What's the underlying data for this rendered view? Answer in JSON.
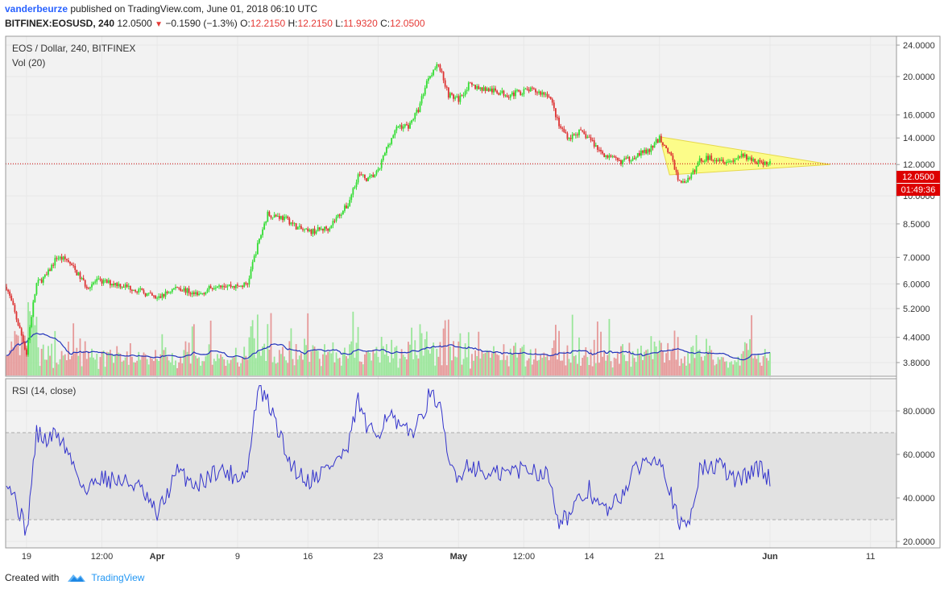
{
  "header": {
    "author": "vanderbeurze",
    "published_text": "published on TradingView.com, June 01, 2018 06:10 UTC",
    "symbol": "BITFINEX:EOSUSD, 240",
    "price": "12.0500",
    "change": "−0.1590 (−1.3%)",
    "o_label": "O:",
    "o_value": "12.2150",
    "h_label": "H:",
    "h_value": "12.2150",
    "l_label": "L:",
    "l_value": "11.9320",
    "c_label": "C:",
    "c_value": "12.0500"
  },
  "footer": {
    "created_with": "Created with",
    "brand": "TradingView"
  },
  "colors": {
    "up": "#33dd33",
    "down": "#dd3333",
    "vol_up": "#99e699",
    "vol_down": "#e69999",
    "vol_ma": "#2233bb",
    "rsi_line": "#3333cc",
    "triangle_fill": "#ffff66",
    "price_line": "#cc0000",
    "grid": "#e8e8e8",
    "background": "#f2f2f2"
  },
  "chart_data": {
    "type": "candlestick",
    "title": "EOS / Dollar, 240, BITFINEX",
    "volume_label": "Vol (20)",
    "rsi_label": "RSI (14, close)",
    "y_scale": "log",
    "ylim": [
      3.4,
      25.5
    ],
    "price_ticks": [
      "24.0000",
      "20.0000",
      "16.0000",
      "14.0000",
      "12.0000",
      "10.0000",
      "8.5000",
      "7.0000",
      "6.0000",
      "5.2000",
      "4.4000",
      "3.8000"
    ],
    "last_price_label": "12.0500",
    "countdown_label": "01:49:36",
    "x_ticks": [
      "19",
      "12:00",
      "Apr",
      "9",
      "16",
      "23",
      "May",
      "12:00",
      "14",
      "21",
      "Jun",
      "11"
    ],
    "rsi_ticks": [
      "80.0000",
      "60.0000",
      "40.0000",
      "20.0000"
    ],
    "rsi_levels": [
      70,
      30
    ],
    "close_anchors": [
      [
        "Mar 17",
        5.9
      ],
      [
        "Mar 18",
        4.9
      ],
      [
        "Mar 19",
        4.0
      ],
      [
        "Mar 20",
        6.0
      ],
      [
        "Mar 21",
        6.3
      ],
      [
        "Mar 22",
        7.0
      ],
      [
        "Mar 23",
        6.9
      ],
      [
        "Mar 24",
        6.4
      ],
      [
        "Mar 25",
        5.9
      ],
      [
        "Mar 26",
        6.1
      ],
      [
        "Mar 28",
        6.0
      ],
      [
        "Mar 30",
        5.8
      ],
      [
        "Apr 1",
        5.5
      ],
      [
        "Apr 3",
        5.9
      ],
      [
        "Apr 5",
        5.6
      ],
      [
        "Apr 7",
        6.0
      ],
      [
        "Apr 9",
        5.9
      ],
      [
        "Apr 10",
        6.0
      ],
      [
        "Apr 11",
        7.5
      ],
      [
        "Apr 12",
        9.0
      ],
      [
        "Apr 13",
        8.9
      ],
      [
        "Apr 14",
        8.7
      ],
      [
        "Apr 15",
        8.3
      ],
      [
        "Apr 16",
        8.1
      ],
      [
        "Apr 18",
        8.3
      ],
      [
        "Apr 20",
        9.5
      ],
      [
        "Apr 21",
        11.3
      ],
      [
        "Apr 22",
        11.0
      ],
      [
        "Apr 23",
        11.5
      ],
      [
        "Apr 24",
        13.5
      ],
      [
        "Apr 25",
        15.0
      ],
      [
        "Apr 26",
        15.0
      ],
      [
        "Apr 27",
        16.5
      ],
      [
        "Apr 28",
        20.0
      ],
      [
        "Apr 29",
        21.5
      ],
      [
        "Apr 30",
        18.0
      ],
      [
        "May 1",
        17.5
      ],
      [
        "May 2",
        19.0
      ],
      [
        "May 4",
        18.5
      ],
      [
        "May 6",
        18.0
      ],
      [
        "May 8",
        18.5
      ],
      [
        "May 10",
        18.0
      ],
      [
        "May 11",
        15.0
      ],
      [
        "May 12",
        14.0
      ],
      [
        "May 13",
        14.5
      ],
      [
        "May 14",
        14.0
      ],
      [
        "May 15",
        13.0
      ],
      [
        "May 16",
        12.5
      ],
      [
        "May 17",
        12.2
      ],
      [
        "May 18",
        12.4
      ],
      [
        "May 19",
        12.8
      ],
      [
        "May 20",
        13.0
      ],
      [
        "May 21",
        14.0
      ],
      [
        "May 22",
        12.8
      ],
      [
        "May 23",
        10.8
      ],
      [
        "May 24",
        11.0
      ],
      [
        "May 25",
        12.3
      ],
      [
        "May 26",
        12.5
      ],
      [
        "May 27",
        12.4
      ],
      [
        "May 28",
        12.2
      ],
      [
        "May 29",
        12.6
      ],
      [
        "May 30",
        12.4
      ],
      [
        "May 31",
        12.15
      ],
      [
        "Jun 1",
        12.05
      ]
    ],
    "rsi_anchors": [
      [
        "Mar 17",
        50
      ],
      [
        "Mar 18",
        38
      ],
      [
        "Mar 19",
        24
      ],
      [
        "Mar 20",
        70
      ],
      [
        "Mar 21",
        66
      ],
      [
        "Mar 22",
        70
      ],
      [
        "Mar 23",
        62
      ],
      [
        "Mar 24",
        52
      ],
      [
        "Mar 25",
        42
      ],
      [
        "Mar 26",
        50
      ],
      [
        "Mar 28",
        48
      ],
      [
        "Mar 30",
        46
      ],
      [
        "Apr 1",
        32
      ],
      [
        "Apr 3",
        52
      ],
      [
        "Apr 5",
        46
      ],
      [
        "Apr 7",
        53
      ],
      [
        "Apr 9",
        50
      ],
      [
        "Apr 10",
        52
      ],
      [
        "Apr 11",
        90
      ],
      [
        "Apr 12",
        84
      ],
      [
        "Apr 13",
        72
      ],
      [
        "Apr 14",
        58
      ],
      [
        "Apr 15",
        52
      ],
      [
        "Apr 16",
        48
      ],
      [
        "Apr 18",
        54
      ],
      [
        "Apr 20",
        62
      ],
      [
        "Apr 21",
        85
      ],
      [
        "Apr 22",
        70
      ],
      [
        "Apr 23",
        70
      ],
      [
        "Apr 24",
        80
      ],
      [
        "Apr 25",
        72
      ],
      [
        "Apr 26",
        70
      ],
      [
        "Apr 27",
        74
      ],
      [
        "Apr 28",
        86
      ],
      [
        "Apr 29",
        85
      ],
      [
        "Apr 30",
        56
      ],
      [
        "May 1",
        50
      ],
      [
        "May 2",
        56
      ],
      [
        "May 4",
        50
      ],
      [
        "May 6",
        52
      ],
      [
        "May 8",
        54
      ],
      [
        "May 10",
        50
      ],
      [
        "May 11",
        30
      ],
      [
        "May 12",
        32
      ],
      [
        "May 13",
        38
      ],
      [
        "May 14",
        44
      ],
      [
        "May 15",
        36
      ],
      [
        "May 16",
        34
      ],
      [
        "May 17",
        40
      ],
      [
        "May 18",
        48
      ],
      [
        "May 19",
        55
      ],
      [
        "May 20",
        58
      ],
      [
        "May 21",
        60
      ],
      [
        "May 22",
        45
      ],
      [
        "May 23",
        26
      ],
      [
        "May 24",
        30
      ],
      [
        "May 25",
        53
      ],
      [
        "May 26",
        54
      ],
      [
        "May 27",
        55
      ],
      [
        "May 28",
        50
      ],
      [
        "May 29",
        48
      ],
      [
        "May 30",
        52
      ],
      [
        "May 31",
        54
      ],
      [
        "Jun 1",
        48
      ]
    ],
    "triangle": {
      "apex_date": "Jun 7",
      "apex_price": 12.0,
      "upper": [
        [
          "May 21",
          14.1
        ],
        [
          "Jun 7",
          12.0
        ]
      ],
      "lower": [
        [
          "May 22",
          11.3
        ],
        [
          "Jun 7",
          12.0
        ]
      ]
    }
  }
}
